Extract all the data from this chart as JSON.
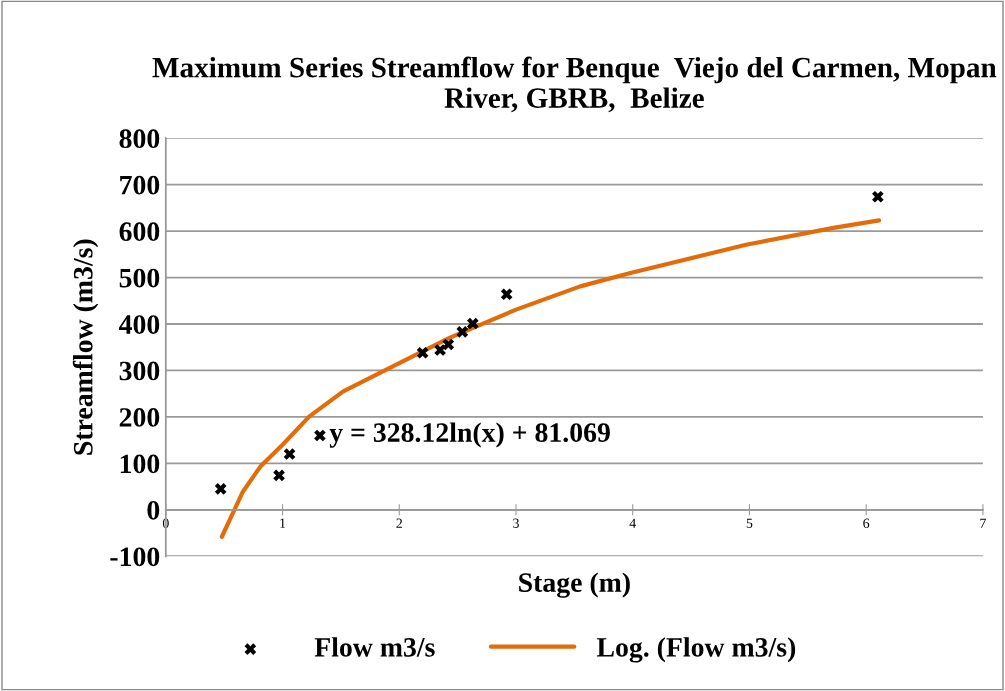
{
  "chart_data": {
    "type": "scatter",
    "title": "Maximum Series Streamflow for Benque  Viejo del Carmen, Mopan River, GBRB,  Belize",
    "xlabel": "Stage (m)",
    "ylabel": "Streamflow (m3/s)",
    "series": [
      {
        "name": "Flow m3/s",
        "color": "#000000",
        "marker": "cross",
        "x": [
          0.47,
          0.97,
          1.06,
          1.32,
          2.2,
          2.35,
          2.42,
          2.54,
          2.63,
          2.92,
          6.1
        ],
        "values": [
          45,
          74,
          120,
          160,
          338,
          344,
          356,
          383,
          401,
          464,
          674
        ]
      },
      {
        "name": "Log. (Flow m3/s)",
        "type": "line",
        "color": "#e36c09",
        "marker": "none",
        "line_style": "solid",
        "x": [
          0.48,
          0.66,
          0.81,
          1.0,
          1.23,
          1.52,
          2.0,
          2.43,
          3.0,
          3.55,
          3.98,
          4.98,
          5.72,
          6.11
        ],
        "values": [
          -58,
          39,
          93,
          140,
          201,
          255,
          316,
          370,
          431,
          481,
          510,
          571,
          607,
          623
        ]
      }
    ],
    "annotations": [
      "y = 328.12ln(x) + 81.069"
    ],
    "xlim": [
      0,
      7
    ],
    "xticks": [
      0,
      1,
      2,
      3,
      4,
      5,
      6,
      7
    ],
    "ylim": [
      -100,
      800
    ],
    "yticks": [
      -100,
      0,
      100,
      200,
      300,
      400,
      500,
      600,
      700,
      800
    ],
    "grid": "y",
    "legend": "bottom"
  }
}
